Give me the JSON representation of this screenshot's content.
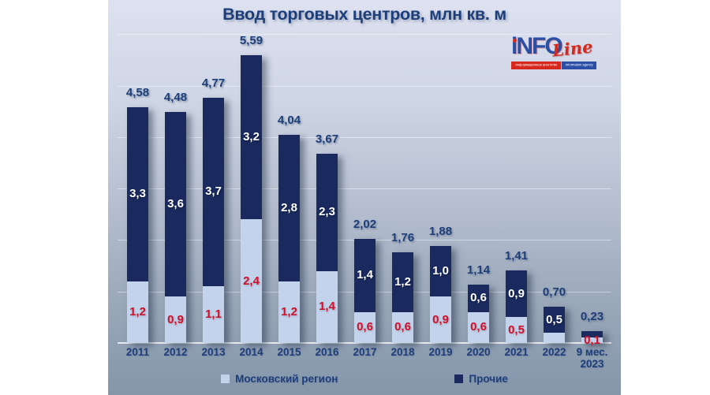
{
  "title": "Ввод торговых центров, млн кв. м",
  "logo": {
    "info_text": "iNFO",
    "line_text": "Line",
    "tagline_ru": "информационное агентство",
    "tagline_en": "information agency"
  },
  "legend": {
    "moscow_label": "Московский регион",
    "others_label": "Прочие"
  },
  "colors": {
    "dark_bar": "#1a2a5e",
    "light_bar": "#c3d3eb",
    "red_label": "#d10f28",
    "navy_text": "#1c3e7a"
  },
  "chart_data": {
    "type": "bar",
    "stacked": true,
    "title": "Ввод торговых центров, млн кв. м",
    "categories": [
      "2011",
      "2012",
      "2013",
      "2014",
      "2015",
      "2016",
      "2017",
      "2018",
      "2019",
      "2020",
      "2021",
      "2022",
      "9 мес.\n2023"
    ],
    "series": [
      {
        "name": "Московский регион",
        "values": [
          1.2,
          0.9,
          1.1,
          2.4,
          1.2,
          1.4,
          0.6,
          0.6,
          0.9,
          0.6,
          0.5,
          0.2,
          0.1
        ],
        "labels": [
          "1,2",
          "0,9",
          "1,1",
          "2,4",
          "1,2",
          "1,4",
          "0,6",
          "0,6",
          "0,9",
          "0,6",
          "0,5",
          "",
          "0,1"
        ]
      },
      {
        "name": "Прочие",
        "values": [
          3.3,
          3.6,
          3.7,
          3.2,
          2.8,
          2.3,
          1.4,
          1.2,
          1.0,
          0.6,
          0.9,
          0.5,
          0.13
        ],
        "labels": [
          "3,3",
          "3,6",
          "3,7",
          "3,2",
          "2,8",
          "2,3",
          "1,4",
          "1,2",
          "1,0",
          "0,6",
          "0,9",
          "0,5",
          ""
        ]
      }
    ],
    "totals": [
      4.58,
      4.48,
      4.77,
      5.59,
      4.04,
      3.67,
      2.02,
      1.76,
      1.88,
      1.14,
      1.41,
      0.7,
      0.23
    ],
    "total_labels": [
      "4,58",
      "4,48",
      "4,77",
      "5,59",
      "4,04",
      "3,67",
      "2,02",
      "1,76",
      "1,88",
      "1,14",
      "1,41",
      "0,70",
      "0,23"
    ],
    "ylim": [
      0,
      6
    ],
    "grid": true,
    "legend_position": "bottom"
  }
}
